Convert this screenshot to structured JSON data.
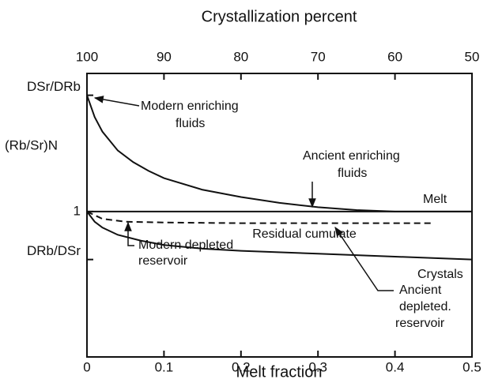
{
  "chart_data": {
    "type": "line",
    "title": "Crystallization percent",
    "xlabel": "Melt fraction",
    "ylabel": "(Rb/Sr)N",
    "xlim": [
      0,
      0.5
    ],
    "xticks": [
      0,
      0.1,
      0.2,
      0.3,
      0.4,
      0.5
    ],
    "x2lim": [
      100,
      50
    ],
    "x2ticks": [
      100,
      90,
      80,
      70,
      60,
      50
    ],
    "ylim": [
      0,
      1.95
    ],
    "yticks": [
      {
        "value": 1.8,
        "label": "DSr/DRb"
      },
      1,
      {
        "value": 0.67,
        "label": "DRb/DSr"
      }
    ],
    "series": [
      {
        "x": [
          0,
          0.5
        ],
        "values": [
          1,
          1
        ],
        "color": "#111"
      },
      {
        "name": "Melt",
        "color": "#111",
        "x": [
          0,
          0.01,
          0.02,
          0.04,
          0.06,
          0.08,
          0.1,
          0.15,
          0.2,
          0.25,
          0.3,
          0.35,
          0.4,
          0.45,
          0.5
        ],
        "values": [
          1.8,
          1.65,
          1.55,
          1.42,
          1.34,
          1.28,
          1.23,
          1.15,
          1.1,
          1.06,
          1.03,
          1.01,
          1.0,
          1.0,
          1.0
        ]
      },
      {
        "name": "Residual cumulate",
        "color": "#111",
        "dashed": true,
        "x": [
          0,
          0.02,
          0.05,
          0.1,
          0.2,
          0.3,
          0.4,
          0.45
        ],
        "values": [
          1,
          0.95,
          0.93,
          0.925,
          0.92,
          0.92,
          0.92,
          0.92
        ]
      },
      {
        "name": "Crystals",
        "color": "#111",
        "x": [
          0,
          0.01,
          0.02,
          0.04,
          0.07,
          0.1,
          0.15,
          0.2,
          0.3,
          0.4,
          0.5
        ],
        "values": [
          1,
          0.93,
          0.89,
          0.84,
          0.8,
          0.77,
          0.745,
          0.73,
          0.71,
          0.69,
          0.67
        ]
      }
    ],
    "annotations": [
      [
        "Modern enriching",
        "fluids"
      ],
      [
        "Ancient enriching",
        "fluids"
      ],
      [
        "Modern depleted",
        "reservoir"
      ],
      [
        "Ancient",
        "depleted.",
        "reservoir"
      ]
    ]
  }
}
